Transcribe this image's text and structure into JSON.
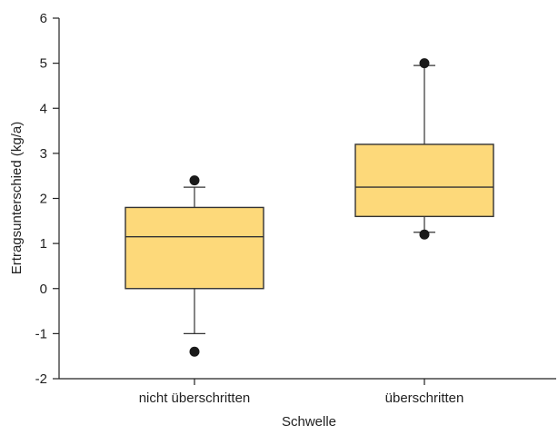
{
  "chart_data": {
    "type": "box",
    "title": "",
    "xlabel": "Schwelle",
    "ylabel": "Ertragsunterschied (kg/a)",
    "ylim": [
      -2,
      6
    ],
    "yticks": [
      -2,
      -1,
      0,
      1,
      2,
      3,
      4,
      5,
      6
    ],
    "grid": false,
    "legend": "none",
    "categories": [
      "nicht überschritten",
      "überschritten"
    ],
    "boxes": [
      {
        "category": "nicht überschritten",
        "whisker_low": -1.0,
        "q1": 0.0,
        "median": 1.15,
        "q3": 1.8,
        "whisker_high": 2.25,
        "outliers": [
          -1.4,
          2.4
        ]
      },
      {
        "category": "überschritten",
        "whisker_low": 1.25,
        "q1": 1.6,
        "median": 2.25,
        "q3": 3.2,
        "whisker_high": 4.95,
        "outliers": [
          1.2,
          5.0
        ]
      }
    ],
    "colors": {
      "box_fill": "#FDD97A",
      "box_stroke": "#333333",
      "axis": "#222222",
      "outlier": "#1a1a1a"
    }
  }
}
